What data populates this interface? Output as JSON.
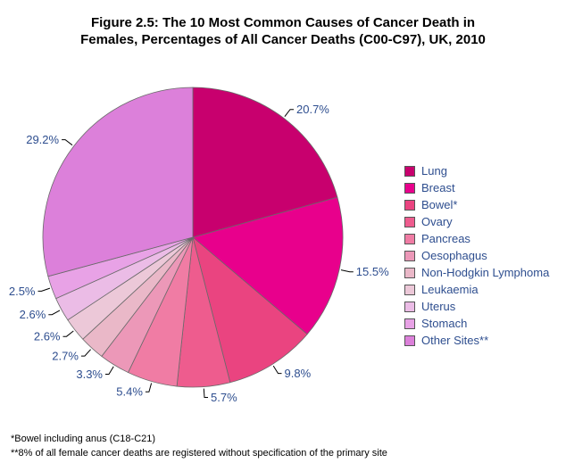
{
  "title": {
    "line1": "Figure 2.5: The 10 Most Common Causes of Cancer Death in",
    "line2": "Females, Percentages of All Cancer Deaths (C00-C97), UK, 2010"
  },
  "chart_data": {
    "type": "pie",
    "categories": [
      "Lung",
      "Breast",
      "Bowel*",
      "Ovary",
      "Pancreas",
      "Oesophagus",
      "Non-Hodgkin Lymphoma",
      "Leukaemia",
      "Uterus",
      "Stomach",
      "Other Sites**"
    ],
    "values": [
      20.7,
      15.5,
      9.8,
      5.7,
      5.4,
      3.3,
      2.7,
      2.6,
      2.6,
      2.5,
      29.2
    ],
    "labels": [
      "20.7%",
      "15.5%",
      "9.8%",
      "5.7%",
      "5.4%",
      "3.3%",
      "2.7%",
      "2.6%",
      "2.6%",
      "2.5%",
      "29.2%"
    ],
    "colors": [
      "#c8006e",
      "#e8008c",
      "#ea4480",
      "#ee5c8e",
      "#f07ca4",
      "#ec98b8",
      "#eab8c8",
      "#ecc8d8",
      "#ebbce6",
      "#e8a2e6",
      "#dc80da"
    ],
    "start_angle": "12 o'clock",
    "direction": "clockwise",
    "legend_position": "right"
  },
  "footnotes": [
    "*Bowel including anus (C18-C21)",
    "**8% of all female cancer deaths are registered without specification of the primary site"
  ]
}
